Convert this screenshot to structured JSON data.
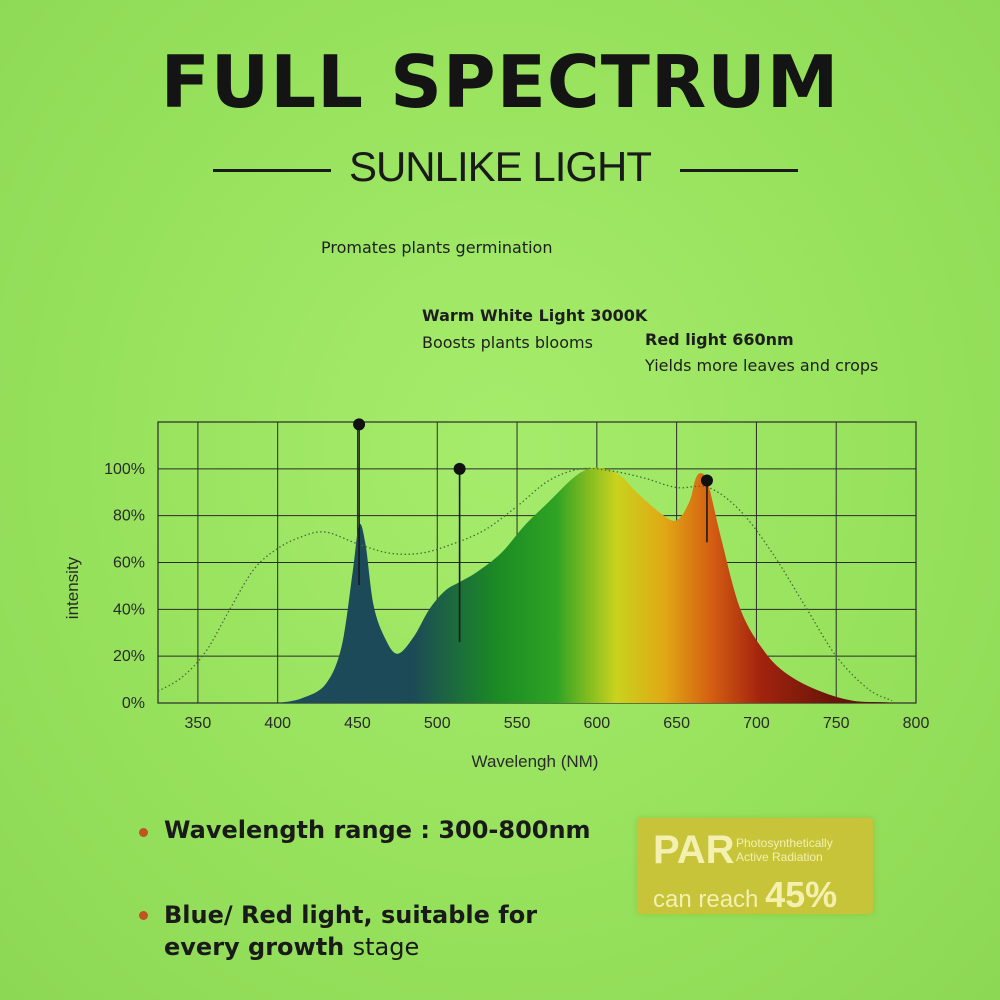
{
  "title": "FULL SPECTRUM",
  "subtitle": "SUNLIKE LIGHT",
  "annotations": {
    "germination": "Promates plants germination",
    "warm_title": "Warm White Light 3000K",
    "warm_desc": "Boosts plants blooms",
    "red_title": "Red light 660nm",
    "red_desc": "Yields more leaves and crops"
  },
  "bullets": [
    {
      "label": "Wavelength range : ",
      "value": "300-800nm"
    },
    {
      "line1": "Blue/ Red light, suitable for",
      "line2a": "every growth ",
      "line2b": "stage"
    }
  ],
  "par": {
    "big": "PAR",
    "small_line1": "Photosynthetically",
    "small_line2": "Active Radiation",
    "reach": "can reach ",
    "percent": "45%"
  },
  "colors": {
    "blue_peak": "#1c4a57",
    "green": "#1b8a24",
    "yellow": "#d0d21e",
    "orange": "#e07a12",
    "red": "#a3230e",
    "dark_red": "#5a1208",
    "bullet": "#c0531f",
    "par_box": "#c7c43a"
  },
  "chart_data": {
    "type": "area",
    "xlabel": "Wavelengh (NM)",
    "ylabel": "intensity",
    "xlim": [
      325,
      800
    ],
    "ylim": [
      0,
      120
    ],
    "x_ticks": [
      350,
      400,
      450,
      500,
      550,
      600,
      650,
      700,
      750,
      800
    ],
    "y_ticks": [
      0,
      20,
      40,
      60,
      80,
      100
    ],
    "y_tick_labels": [
      "0%",
      "20%",
      "40%",
      "60%",
      "80%",
      "100%"
    ],
    "grid": true,
    "series": [
      {
        "style": "filled-gradient",
        "x": [
          400,
          415,
          430,
          440,
          447,
          451,
          455,
          460,
          467,
          475,
          485,
          495,
          505,
          515,
          525,
          540,
          555,
          570,
          585,
          595,
          605,
          615,
          625,
          640,
          650,
          658,
          662,
          666,
          670,
          678,
          690,
          705,
          720,
          740,
          760,
          780,
          790
        ],
        "y": [
          0,
          2,
          8,
          24,
          56,
          76,
          68,
          42,
          28,
          21,
          28,
          40,
          48,
          52,
          56,
          64,
          76,
          86,
          96,
          100,
          100,
          97,
          90,
          81,
          78,
          86,
          96,
          98,
          93,
          70,
          40,
          22,
          12,
          5,
          1,
          0.3,
          0
        ]
      },
      {
        "style": "dotted",
        "x": [
          325,
          340,
          355,
          370,
          385,
          400,
          415,
          430,
          450,
          470,
          490,
          510,
          530,
          550,
          570,
          590,
          610,
          630,
          650,
          670,
          690,
          710,
          730,
          750,
          770,
          785
        ],
        "y": [
          5,
          11,
          22,
          40,
          57,
          66,
          71,
          73,
          68,
          64,
          64,
          68,
          74,
          84,
          95,
          100,
          99,
          96,
          92,
          92,
          82,
          64,
          42,
          20,
          6,
          1
        ]
      }
    ],
    "markers": [
      {
        "x": 451,
        "y_top": 119
      },
      {
        "x": 514,
        "y_top": 100
      },
      {
        "x": 669,
        "y_top": 95
      }
    ]
  }
}
